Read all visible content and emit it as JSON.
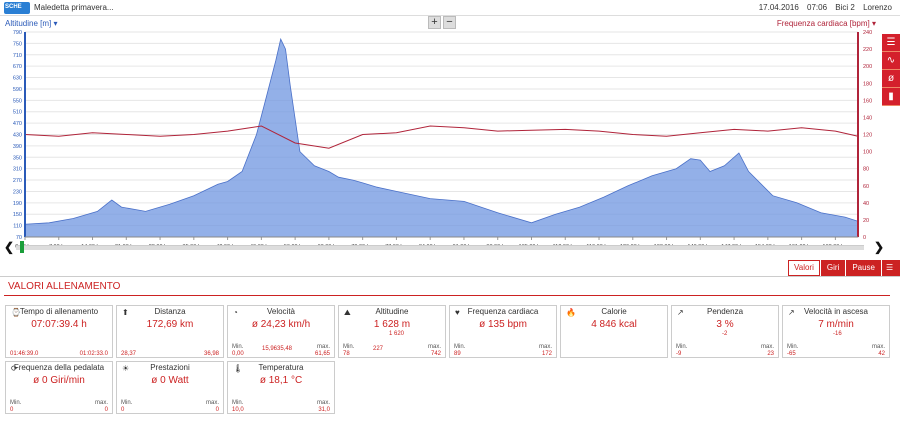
{
  "header": {
    "logo": "SCHE",
    "title": "Maledetta primavera...",
    "date": "17.04.2016",
    "time": "07:06",
    "bike": "Bici 2",
    "user": "Lorenzo"
  },
  "chart": {
    "left_axis_label": "Altitudine [m]",
    "right_axis_label": "Frequenza cardiaca [bpm]",
    "zoom_in": "+",
    "zoom_out": "−",
    "left_ticks": [
      "790",
      "750",
      "710",
      "670",
      "630",
      "590",
      "550",
      "510",
      "470",
      "430",
      "390",
      "350",
      "310",
      "270",
      "230",
      "190",
      "150",
      "110",
      "70"
    ],
    "right_ticks": [
      "240",
      "220",
      "200",
      "180",
      "160",
      "140",
      "120",
      "100",
      "80",
      "60",
      "40",
      "20",
      "0"
    ],
    "x_ticks": [
      "0,00 km",
      "7,00 km",
      "14,00 km",
      "21,00 km",
      "28,00 km",
      "35,00 km",
      "42,00 km",
      "49,00 km",
      "56,00 km",
      "63,00 km",
      "70,00 km",
      "77,00 km",
      "84,00 km",
      "91,00 km",
      "98,00 km",
      "105,00 km",
      "112,00 km",
      "119,00 km",
      "126,00 km",
      "133,00 km",
      "140,00 km",
      "147,00 km",
      "154,00 km",
      "161,00 km",
      "168,00 km"
    ],
    "colors": {
      "altitude": "#6f95e0",
      "heart": "#b0243a",
      "speed": "#3a8a3a"
    }
  },
  "chart_data": {
    "type": "area",
    "x_unit": "km",
    "x_range": [
      0,
      172.69
    ],
    "series": [
      {
        "name": "Altitudine [m]",
        "axis": "left",
        "x": [
          0,
          5,
          10,
          15,
          18,
          20,
          25,
          30,
          35,
          40,
          42,
          45,
          48,
          50,
          52,
          53,
          54,
          55,
          57,
          60,
          63,
          65,
          68,
          70,
          73,
          77,
          84,
          91,
          98,
          105,
          110,
          115,
          120,
          125,
          130,
          135,
          138,
          140,
          142,
          145,
          148,
          150,
          155,
          160,
          165,
          170,
          172.69
        ],
        "y": [
          115,
          120,
          135,
          160,
          200,
          175,
          160,
          185,
          215,
          255,
          265,
          300,
          430,
          560,
          690,
          765,
          730,
          600,
          370,
          320,
          300,
          280,
          270,
          260,
          245,
          230,
          205,
          195,
          155,
          120,
          150,
          175,
          210,
          250,
          285,
          310,
          345,
          340,
          300,
          320,
          365,
          300,
          215,
          190,
          155,
          140,
          125
        ]
      },
      {
        "name": "Frequenza cardiaca [bpm]",
        "axis": "right",
        "x": [
          0,
          7,
          14,
          21,
          28,
          35,
          42,
          49,
          56,
          63,
          70,
          77,
          84,
          91,
          98,
          105,
          112,
          119,
          126,
          133,
          140,
          147,
          154,
          161,
          168,
          172.69
        ],
        "y": [
          120,
          118,
          122,
          120,
          118,
          120,
          124,
          130,
          110,
          104,
          120,
          122,
          130,
          128,
          124,
          125,
          126,
          124,
          120,
          118,
          122,
          126,
          124,
          128,
          124,
          118
        ]
      }
    ],
    "left_ylim": [
      70,
      790
    ],
    "right_ylim": [
      0,
      240
    ]
  },
  "scroller": {
    "left_arrow": "❮",
    "right_arrow": "❯"
  },
  "tabs": [
    {
      "label": "Valori",
      "active": true
    },
    {
      "label": "Giri",
      "active": false
    },
    {
      "label": "Pause",
      "active": false
    }
  ],
  "section_title": "VALORI ALLENAMENTO",
  "cards": [
    {
      "icon": "⌚",
      "title": "Tempo di allenamento",
      "value": "07:07:39.4 h",
      "s1": "01:46:39.0",
      "s2": "01:02:33.0",
      "l1": "",
      "l2": ""
    },
    {
      "icon": "⬆",
      "title": "Distanza",
      "value": "172,69 km",
      "s1": "28,37",
      "s2": "36,98",
      "l1": "",
      "l2": ""
    },
    {
      "icon": "◔",
      "title": "Velocità",
      "value": "ø 24,23 km/h",
      "s0": "0,00",
      "s1": "15,96",
      "s2": "35,48",
      "s3": "61,65",
      "l1": "Min.",
      "l2": "max."
    },
    {
      "icon": "⛰",
      "title": "Altitudine",
      "value": "1 628 m",
      "sub": "1 620",
      "s0": "78",
      "s1": "227",
      "s3": "742",
      "l1": "Min.",
      "l2": "max."
    },
    {
      "icon": "♥",
      "title": "Frequenza cardiaca",
      "value": "ø 135 bpm",
      "s0": "89",
      "s3": "172",
      "l1": "Min.",
      "l2": "max."
    },
    {
      "icon": "🔥",
      "title": "Calorie",
      "value": "4 846 kcal"
    },
    {
      "icon": "↗",
      "title": "Pendenza",
      "value": "3 %",
      "sub": "-2",
      "s0": "-9",
      "s3": "23",
      "l1": "Min.",
      "l2": "max."
    },
    {
      "icon": "↗",
      "title": "Velocità in ascesa",
      "value": "7 m/min",
      "sub": "-16",
      "s0": "-65",
      "s3": "42",
      "l1": "Min.",
      "l2": "max."
    },
    {
      "icon": "⟳",
      "title": "Frequenza della pedalata",
      "value": "ø 0 Giri/min",
      "s0": "0",
      "s3": "0",
      "l1": "Min.",
      "l2": "max."
    },
    {
      "icon": "☀",
      "title": "Prestazioni",
      "value": "ø 0 Watt",
      "s0": "0",
      "s3": "0",
      "l1": "Min.",
      "l2": "max."
    },
    {
      "icon": "🌡",
      "title": "Temperatura",
      "value": "ø 18,1 °C",
      "s0": "10,0",
      "s3": "31,0",
      "l1": "Min.",
      "l2": "max."
    }
  ]
}
